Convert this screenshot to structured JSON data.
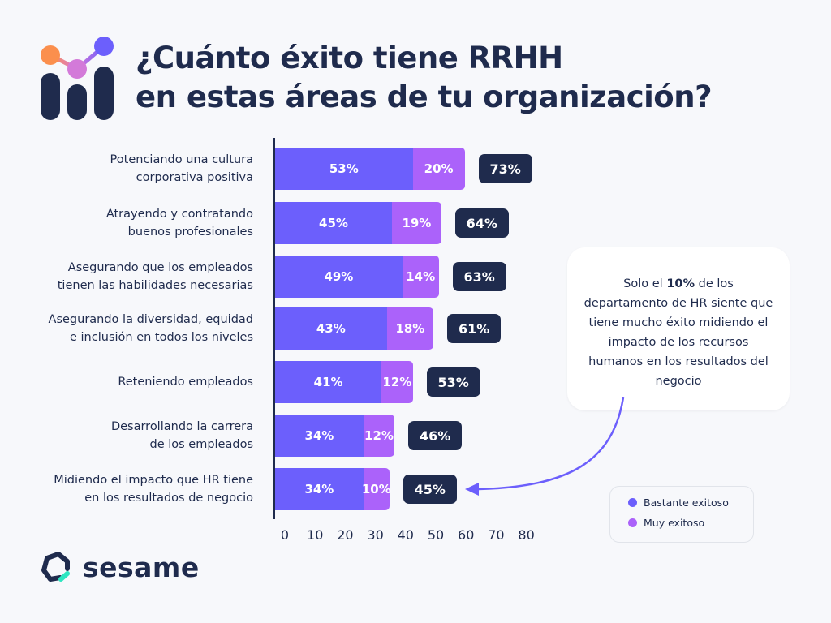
{
  "title": {
    "line1": "¿Cuánto éxito tiene RRHH",
    "line2": "en estas áreas de tu organización?"
  },
  "colors": {
    "bastante": "#6c5ffc",
    "muy": "#ab62fa",
    "total": "#1f2b4d",
    "accent": "#2de6c0"
  },
  "chart_data": {
    "type": "bar",
    "orientation": "horizontal",
    "stacked": true,
    "categories": [
      "Potenciando una cultura\ncorporativa positiva",
      "Atrayendo y contratando\nbuenos profesionales",
      "Asegurando que los empleados\ntienen las habilidades necesarias",
      "Asegurando la diversidad, equidad\ne inclusión en todos los niveles",
      "Reteniendo empleados",
      "Desarrollando la carrera\nde los empleados",
      "Midiendo el impacto que HR tiene\nen los resultados de negocio"
    ],
    "series": [
      {
        "name": "Bastante exitoso",
        "values": [
          53,
          45,
          49,
          43,
          41,
          34,
          34
        ],
        "labels": [
          "53%",
          "45%",
          "49%",
          "43%",
          "41%",
          "34%",
          "34%"
        ]
      },
      {
        "name": "Muy exitoso",
        "values": [
          20,
          19,
          14,
          18,
          12,
          12,
          10
        ],
        "labels": [
          "20%",
          "19%",
          "14%",
          "18%",
          "12%",
          "12%",
          "10%"
        ]
      }
    ],
    "totals": [
      "73%",
      "64%",
      "63%",
      "61%",
      "53%",
      "46%",
      "45%"
    ],
    "xticks": [
      "0",
      "10",
      "20",
      "30",
      "40",
      "50",
      "60",
      "70",
      "80"
    ],
    "xlim": [
      0,
      80
    ],
    "grid": false,
    "legend_position": "bottom-right"
  },
  "callout": {
    "pre": "Solo el ",
    "bold": "10%",
    "post": " de los departamento de HR siente que tiene mucho éxito midiendo el impacto de los recursos humanos en los resultados del negocio"
  },
  "legend": {
    "items": [
      "Bastante exitoso",
      "Muy exitoso"
    ]
  },
  "brand": {
    "name": "sesame"
  }
}
